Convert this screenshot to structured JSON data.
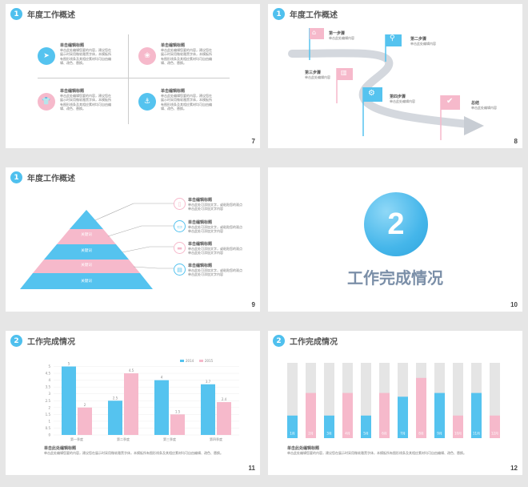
{
  "colors": {
    "blue": "#55c3ef",
    "pink": "#f6b9cb",
    "gray": "#e5e5e5",
    "title": "#7b8fa8"
  },
  "slides": {
    "s7": {
      "badge": "1",
      "title": "年度工作概述",
      "num": "7",
      "items": [
        {
          "title": "单击编辑标题",
          "text": "单击此处编辑您要的内容，建议您在展示时采用微软雅黑字体，本模板所有图形线条及其相应素材均可自由编辑、改色、替换。",
          "icon": "send-icon"
        },
        {
          "title": "单击编辑标题",
          "text": "单击此处编辑您要的内容，建议您在展示时采用微软雅黑字体，本模板所有图形线条及其相应素材均可自由编辑、改色、替换。",
          "icon": "leaf-icon"
        },
        {
          "title": "单击编辑标题",
          "text": "单击此处编辑您要的内容，建议您在展示时采用微软雅黑字体，本模板所有图形线条及其相应素材均可自由编辑、改色、替换。",
          "icon": "shirt-icon"
        },
        {
          "title": "单击编辑标题",
          "text": "单击此处编辑您要的内容，建议您在展示时采用微软雅黑字体，本模板所有图形线条及其相应素材均可自由编辑、改色、替换。",
          "icon": "anchor-icon"
        }
      ]
    },
    "s8": {
      "badge": "1",
      "title": "年度工作概述",
      "num": "8",
      "steps": [
        {
          "title": "第一步骤",
          "text": "单击此处编辑内容"
        },
        {
          "title": "第二步骤",
          "text": "单击此处编辑内容"
        },
        {
          "title": "第三步骤",
          "text": "单击此处编辑内容"
        },
        {
          "title": "第四步骤",
          "text": "单击此处编辑内容"
        },
        {
          "title": "总结",
          "text": "单击此处编辑内容"
        }
      ]
    },
    "s9": {
      "badge": "1",
      "title": "年度工作概述",
      "num": "9",
      "layers": [
        "关键词",
        "关键词",
        "关键词",
        "关键词"
      ],
      "items": [
        {
          "title": "单击编辑标题",
          "text": "单击此处可添加文字，或粘贴您的观点单击此处可添加文字内容"
        },
        {
          "title": "单击编辑标题",
          "text": "单击此处可添加文字，或粘贴您的观点单击此处可添加文字内容"
        },
        {
          "title": "单击编辑标题",
          "text": "单击此处可添加文字，或粘贴您的观点单击此处可添加文字内容"
        },
        {
          "title": "单击编辑标题",
          "text": "单击此处可添加文字，或粘贴您的观点单击此处可添加文字内容"
        }
      ]
    },
    "s10": {
      "big": "2",
      "title": "工作完成情况",
      "num": "10"
    },
    "s11": {
      "badge": "2",
      "title": "工作完成情况",
      "num": "11",
      "desc_title": "单击此处编辑标题",
      "desc": "单击此处编辑您要的内容，建议您在展示时采用微软雅黑字体，本模板所有图形线条及其相应素材均可自由编辑、改色、替换。"
    },
    "s12": {
      "badge": "2",
      "title": "工作完成情况",
      "num": "12",
      "desc_title": "单击此处编辑标题",
      "desc": "单击此处编辑您要的内容，建议您在展示时采用微软雅黑字体，本模板所有图形线条及其相应素材均可自由编辑、改色、替换。"
    }
  },
  "chart_data": [
    {
      "type": "bar",
      "categories": [
        "第一季度",
        "第二季度",
        "第三季度",
        "第四季度"
      ],
      "series": [
        {
          "name": "2014",
          "values": [
            5,
            2.5,
            4,
            3.7
          ],
          "color": "#55c3ef"
        },
        {
          "name": "2015",
          "values": [
            2,
            4.5,
            1.5,
            2.4
          ],
          "color": "#f6b9cb"
        }
      ],
      "ylim": [
        0,
        5.5
      ],
      "yticks": [
        "0",
        "0.5",
        "1",
        "1.5",
        "2",
        "2.5",
        "3",
        "3.5",
        "4",
        "4.5",
        "5"
      ],
      "legend": "top-right",
      "grid": true
    },
    {
      "type": "bar",
      "categories": [
        "1月",
        "2月",
        "3月",
        "4月",
        "5月",
        "6月",
        "7月",
        "8月",
        "9月",
        "10月",
        "11月",
        "12月"
      ],
      "values": [
        30,
        60,
        30,
        60,
        30,
        60,
        55,
        80,
        60,
        30,
        60,
        30
      ],
      "colors": [
        "#55c3ef",
        "#f6b9cb",
        "#55c3ef",
        "#f6b9cb",
        "#55c3ef",
        "#f6b9cb",
        "#55c3ef",
        "#f6b9cb",
        "#55c3ef",
        "#f6b9cb",
        "#55c3ef",
        "#f6b9cb"
      ],
      "ylim": [
        0,
        100
      ]
    }
  ]
}
